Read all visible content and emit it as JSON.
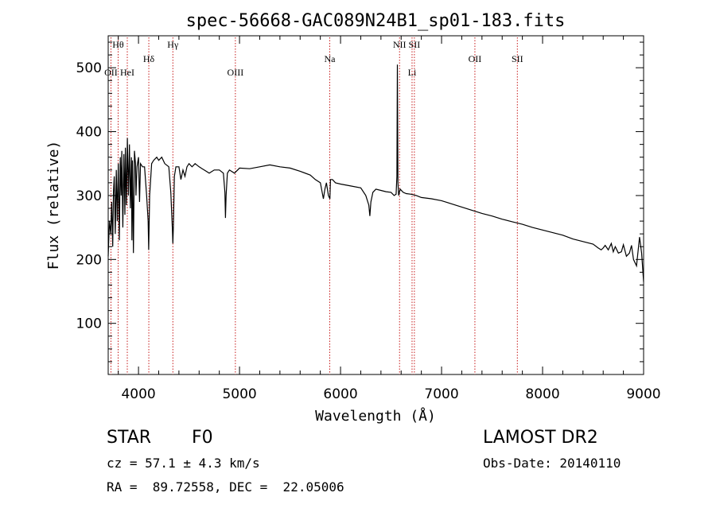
{
  "chart_data": {
    "type": "line",
    "title": "spec-56668-GAC089N24B1_sp01-183.fits",
    "xlabel": "Wavelength (Å)",
    "ylabel": "Flux (relative)",
    "xlim": [
      3700,
      9000
    ],
    "ylim": [
      20,
      550
    ],
    "xticks": [
      4000,
      5000,
      6000,
      7000,
      8000,
      9000
    ],
    "yticks": [
      100,
      200,
      300,
      400,
      500
    ],
    "grid": false,
    "series": [
      {
        "x": [
          3700,
          3712,
          3725,
          3735,
          3745,
          3752,
          3760,
          3770,
          3780,
          3790,
          3800,
          3810,
          3820,
          3828,
          3835,
          3845,
          3855,
          3865,
          3870,
          3880,
          3890,
          3900,
          3910,
          3920,
          3930,
          3935,
          3940,
          3950,
          3960,
          3970,
          3975,
          3985,
          4000,
          4010,
          4020,
          4040,
          4060,
          4080,
          4095,
          4101,
          4110,
          4130,
          4150,
          4180,
          4200,
          4230,
          4260,
          4300,
          4320,
          4335,
          4340,
          4345,
          4355,
          4370,
          4400,
          4420,
          4440,
          4460,
          4480,
          4500,
          4530,
          4560,
          4600,
          4650,
          4700,
          4750,
          4800,
          4840,
          4855,
          4861,
          4867,
          4880,
          4900,
          4950,
          5000,
          5100,
          5200,
          5300,
          5400,
          5500,
          5600,
          5700,
          5750,
          5800,
          5830,
          5845,
          5860,
          5880,
          5895,
          5900,
          5920,
          5950,
          6000,
          6100,
          6200,
          6250,
          6280,
          6290,
          6300,
          6320,
          6350,
          6400,
          6450,
          6500,
          6530,
          6550,
          6558,
          6563,
          6568,
          6575,
          6590,
          6620,
          6650,
          6700,
          6750,
          6800,
          6900,
          7000,
          7100,
          7200,
          7300,
          7400,
          7500,
          7600,
          7700,
          7800,
          7900,
          8000,
          8100,
          8200,
          8300,
          8400,
          8500,
          8550,
          8580,
          8600,
          8620,
          8650,
          8680,
          8700,
          8720,
          8750,
          8780,
          8800,
          8830,
          8860,
          8880,
          8900,
          8930,
          8960,
          8980,
          9000
        ],
        "y": [
          205,
          260,
          240,
          290,
          220,
          305,
          330,
          240,
          340,
          260,
          350,
          230,
          360,
          300,
          370,
          250,
          365,
          270,
          375,
          285,
          390,
          300,
          380,
          280,
          360,
          230,
          355,
          210,
          370,
          350,
          300,
          345,
          360,
          290,
          350,
          345,
          345,
          300,
          260,
          215,
          300,
          350,
          355,
          360,
          355,
          360,
          350,
          345,
          305,
          250,
          225,
          250,
          330,
          345,
          345,
          325,
          340,
          330,
          345,
          350,
          345,
          350,
          345,
          340,
          335,
          340,
          340,
          335,
          305,
          265,
          300,
          335,
          340,
          335,
          343,
          342,
          345,
          348,
          345,
          343,
          338,
          332,
          325,
          320,
          295,
          310,
          320,
          300,
          295,
          325,
          325,
          320,
          318,
          315,
          312,
          300,
          285,
          268,
          290,
          305,
          310,
          308,
          306,
          305,
          300,
          302,
          330,
          505,
          320,
          300,
          310,
          305,
          303,
          302,
          300,
          297,
          295,
          292,
          287,
          282,
          277,
          272,
          268,
          263,
          259,
          255,
          250,
          246,
          242,
          238,
          232,
          228,
          224,
          218,
          215,
          218,
          222,
          215,
          225,
          212,
          220,
          210,
          212,
          223,
          205,
          210,
          222,
          200,
          190,
          235,
          210,
          165
        ]
      }
    ],
    "line_markers": [
      {
        "label": "Hθ",
        "x": 3798,
        "row": 1
      },
      {
        "label": "OII",
        "x": 3727,
        "row": 2
      },
      {
        "label": "HeI",
        "x": 3889,
        "row": 2
      },
      {
        "label": "Hδ",
        "x": 4102,
        "row": 1.5
      },
      {
        "label": "Hγ",
        "x": 4340,
        "row": 1
      },
      {
        "label": "OIII",
        "x": 4959,
        "row": 2
      },
      {
        "label": "Na",
        "x": 5893,
        "row": 1.5
      },
      {
        "label": "NII",
        "x": 6584,
        "row": 1
      },
      {
        "label": "Li",
        "x": 6708,
        "row": 2
      },
      {
        "label": "SII",
        "x": 6731,
        "row": 1
      },
      {
        "label": "OII",
        "x": 7330,
        "row": 1.5
      },
      {
        "label": "SII",
        "x": 7750,
        "row": 1.5
      }
    ]
  },
  "info": {
    "object_class": "STAR",
    "subclass": "F0",
    "survey": "LAMOST DR2",
    "cz": "cz = 57.1 ± 4.3 km/s",
    "obs_date": "Obs-Date: 20140110",
    "coords": "RA =  89.72558, DEC =  22.05006"
  }
}
